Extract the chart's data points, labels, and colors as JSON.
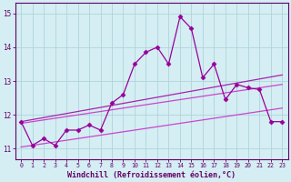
{
  "x": [
    0,
    1,
    2,
    3,
    4,
    5,
    6,
    7,
    8,
    9,
    10,
    11,
    12,
    13,
    14,
    15,
    16,
    17,
    18,
    19,
    20,
    21,
    22,
    23
  ],
  "line_main": [
    11.8,
    11.1,
    11.3,
    11.1,
    11.55,
    11.55,
    11.7,
    11.55,
    12.35,
    12.6,
    13.5,
    13.85,
    14.0,
    13.5,
    14.9,
    14.55,
    13.1,
    13.5,
    12.45,
    12.9,
    12.8,
    12.75,
    11.8,
    11.8
  ],
  "trend_low": [
    11.05,
    11.1,
    11.15,
    11.2,
    11.25,
    11.3,
    11.35,
    11.4,
    11.45,
    11.5,
    11.55,
    11.6,
    11.65,
    11.7,
    11.75,
    11.8,
    11.85,
    11.9,
    11.95,
    12.0,
    12.05,
    12.1,
    12.15,
    12.2
  ],
  "trend_mid1": [
    11.75,
    11.8,
    11.85,
    11.9,
    11.95,
    12.0,
    12.05,
    12.1,
    12.15,
    12.2,
    12.25,
    12.3,
    12.35,
    12.4,
    12.45,
    12.5,
    12.55,
    12.6,
    12.65,
    12.7,
    12.75,
    12.8,
    12.85,
    12.9
  ],
  "trend_mid2": [
    11.8,
    11.86,
    11.92,
    11.98,
    12.04,
    12.1,
    12.16,
    12.22,
    12.28,
    12.34,
    12.4,
    12.46,
    12.52,
    12.58,
    12.64,
    12.7,
    12.76,
    12.82,
    12.88,
    12.94,
    13.0,
    13.06,
    13.12,
    13.18
  ],
  "line_color": "#990099",
  "trend_color1": "#cc44cc",
  "trend_color2": "#aa22aa",
  "background_color": "#d4eef4",
  "grid_color": "#b0d4d8",
  "axis_color": "#660066",
  "tick_color": "#660066",
  "xlabel": "Windchill (Refroidissement éolien,°C)",
  "ylim": [
    10.7,
    15.3
  ],
  "xlim": [
    -0.5,
    23.5
  ],
  "yticks": [
    11,
    12,
    13,
    14,
    15
  ],
  "xticks": [
    0,
    1,
    2,
    3,
    4,
    5,
    6,
    7,
    8,
    9,
    10,
    11,
    12,
    13,
    14,
    15,
    16,
    17,
    18,
    19,
    20,
    21,
    22,
    23
  ]
}
